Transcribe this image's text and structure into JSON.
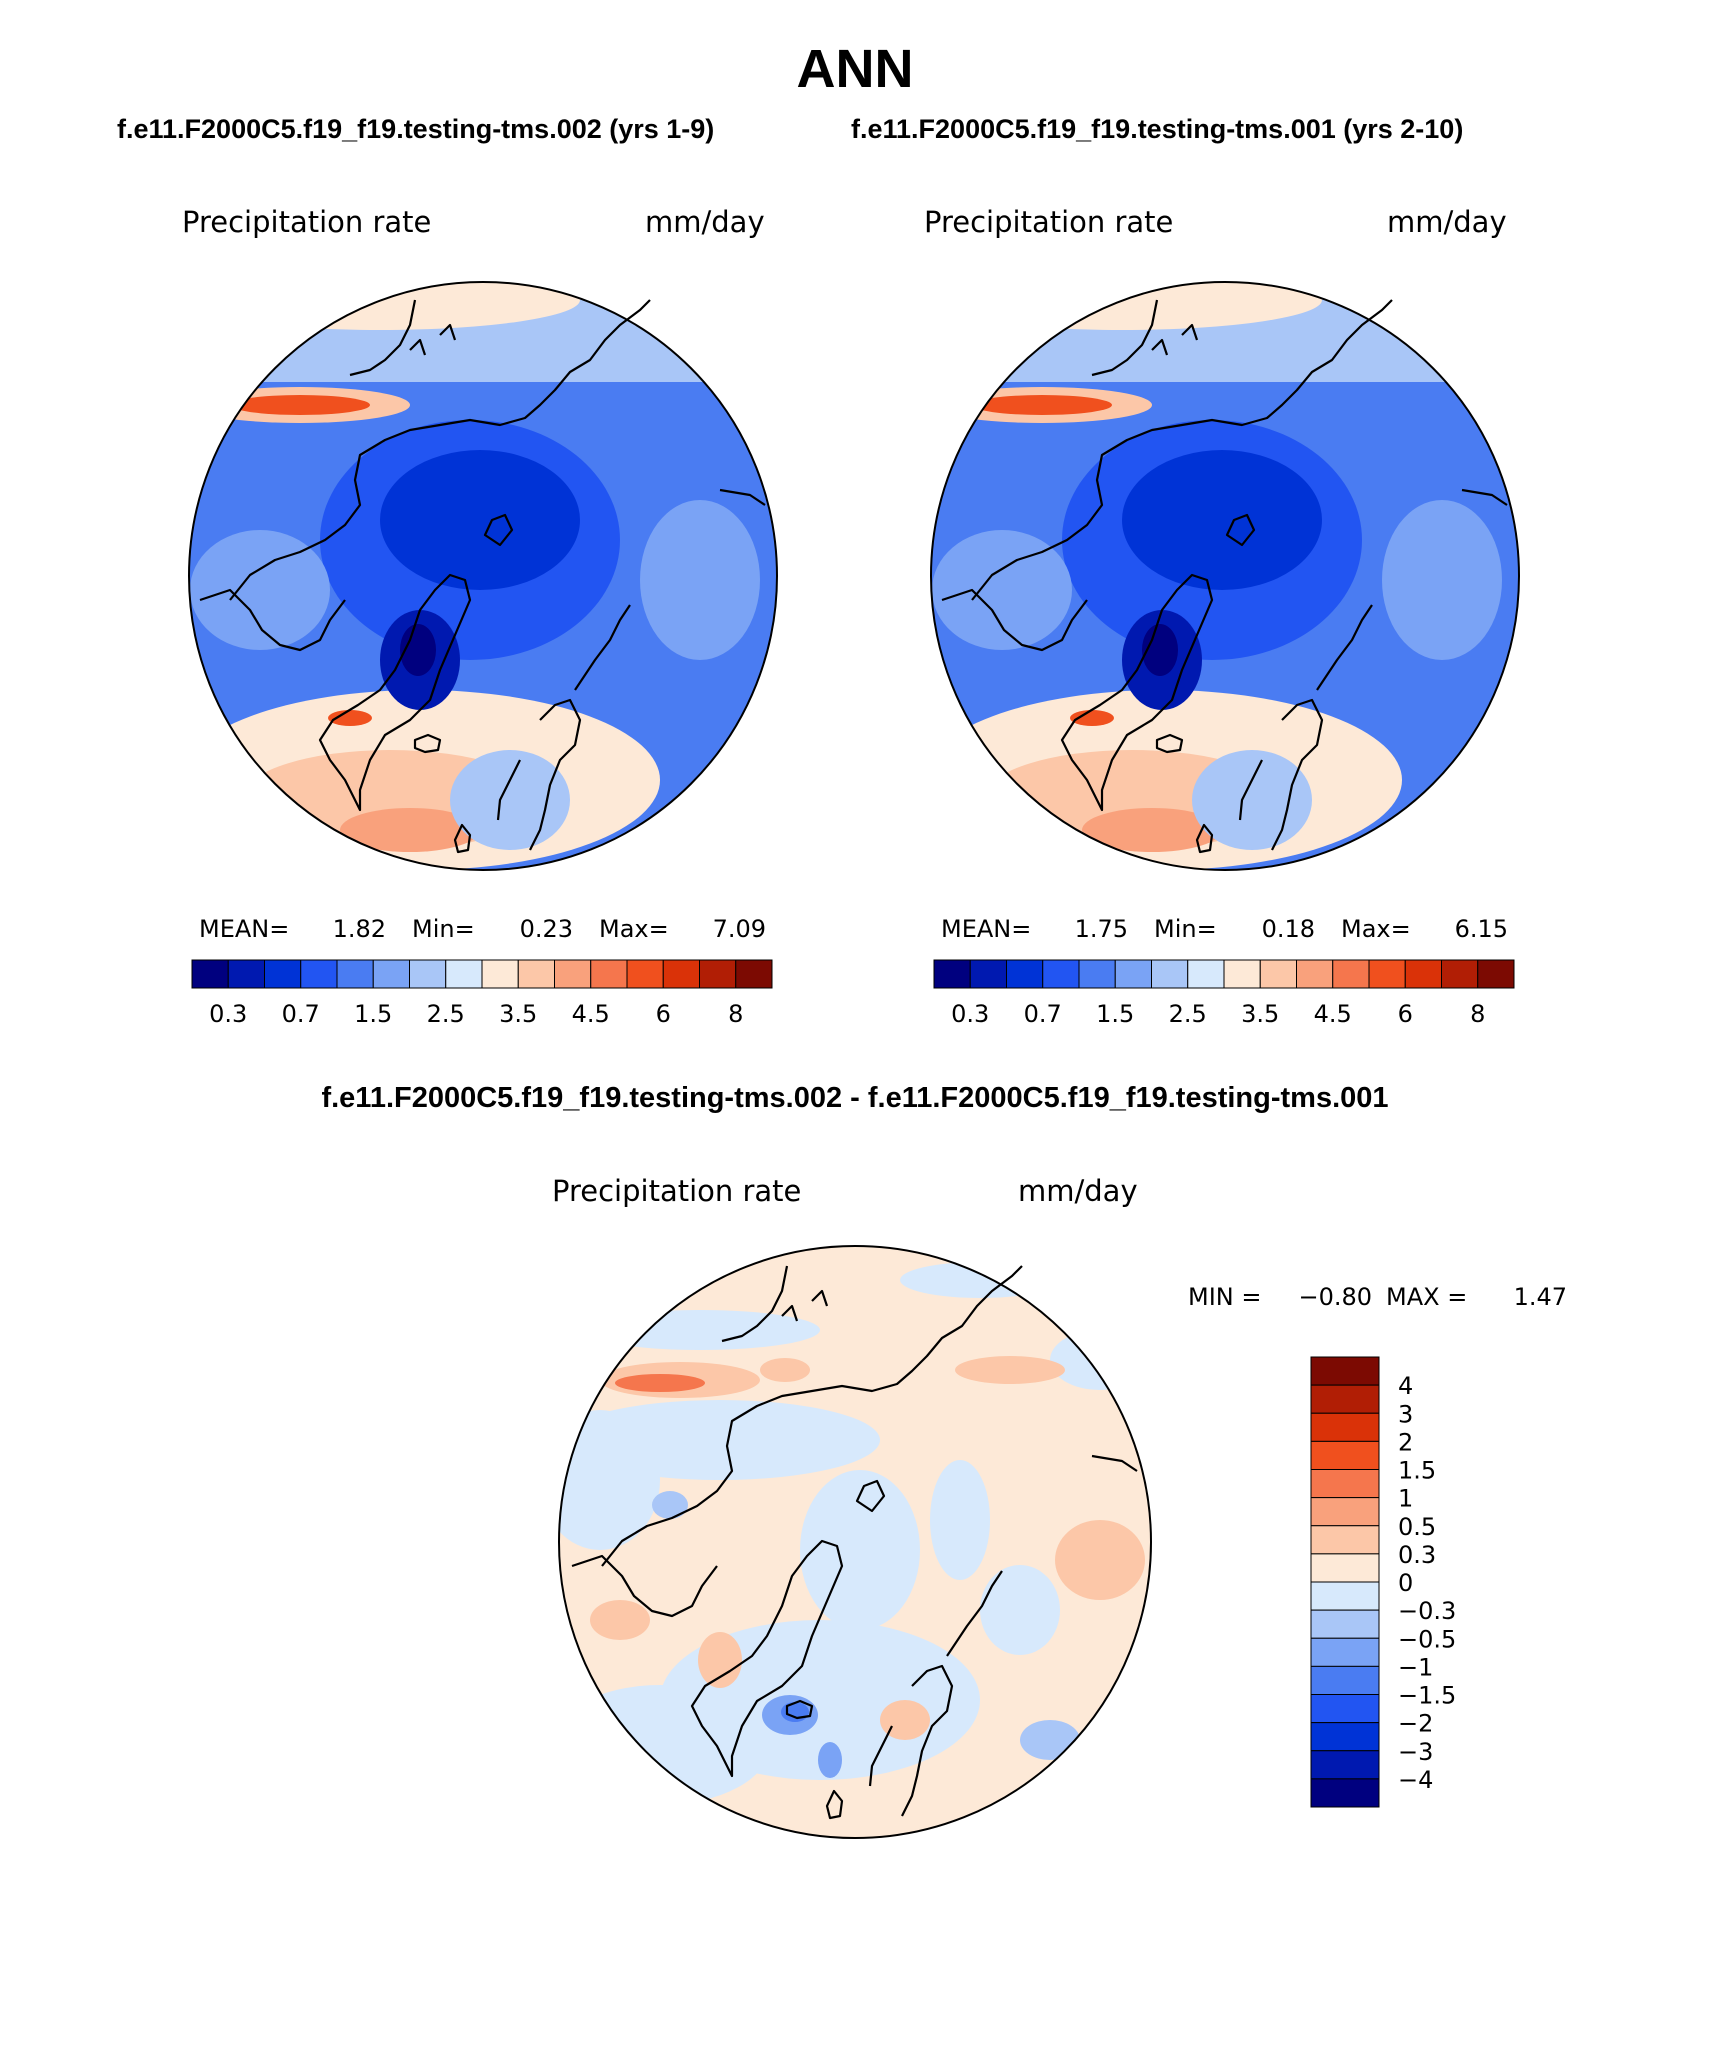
{
  "title": "ANN",
  "case_titles": {
    "left": "f.e11.F2000C5.f19_f19.testing-tms.002 (yrs 1-9)",
    "right": "f.e11.F2000C5.f19_f19.testing-tms.001 (yrs 2-10)"
  },
  "diff_title": "f.e11.F2000C5.f19_f19.testing-tms.002 - f.e11.F2000C5.f19_f19.testing-tms.001",
  "panels": [
    {
      "variable": "Precipitation rate",
      "units": "mm/day",
      "stats": {
        "mean_label": "MEAN=",
        "mean": "1.82",
        "min_label": "Min=",
        "min": "0.23",
        "max_label": "Max=",
        "max": "7.09"
      }
    },
    {
      "variable": "Precipitation rate",
      "units": "mm/day",
      "stats": {
        "mean_label": "MEAN=",
        "mean": "1.75",
        "min_label": "Min=",
        "min": "0.18",
        "max_label": "Max=",
        "max": "6.15"
      }
    }
  ],
  "diff_panel": {
    "variable": "Precipitation rate",
    "units": "mm/day",
    "minmax": {
      "min_label": "MIN =",
      "min": "−0.80",
      "max_label": "MAX =",
      "max": "1.47"
    }
  },
  "colorbar_abs": {
    "colors": [
      "#00007f",
      "#0019b0",
      "#0033d6",
      "#2255f2",
      "#4a7cf2",
      "#7aa3f5",
      "#a9c6f7",
      "#d7e9fc",
      "#fde9d7",
      "#fcc7a8",
      "#f9a17c",
      "#f5764d",
      "#f0501e",
      "#da3208",
      "#b11e05",
      "#7c0a02"
    ],
    "ticks": [
      "0.3",
      "0.7",
      "1.5",
      "2.5",
      "3.5",
      "4.5",
      "6",
      "8"
    ]
  },
  "colorbar_diff": {
    "colors": [
      "#00007f",
      "#0019b0",
      "#0033d6",
      "#2255f2",
      "#4a7cf2",
      "#7aa3f5",
      "#a9c6f7",
      "#d7e9fc",
      "#fde9d7",
      "#fcc7a8",
      "#f9a17c",
      "#f5764d",
      "#f0501e",
      "#da3208",
      "#b11e05",
      "#7c0a02"
    ],
    "labels": [
      "4",
      "3",
      "2",
      "1.5",
      "1",
      "0.5",
      "0.3",
      "0",
      "−0.3",
      "−0.5",
      "−1",
      "−1.5",
      "−2",
      "−3",
      "−4"
    ]
  }
}
